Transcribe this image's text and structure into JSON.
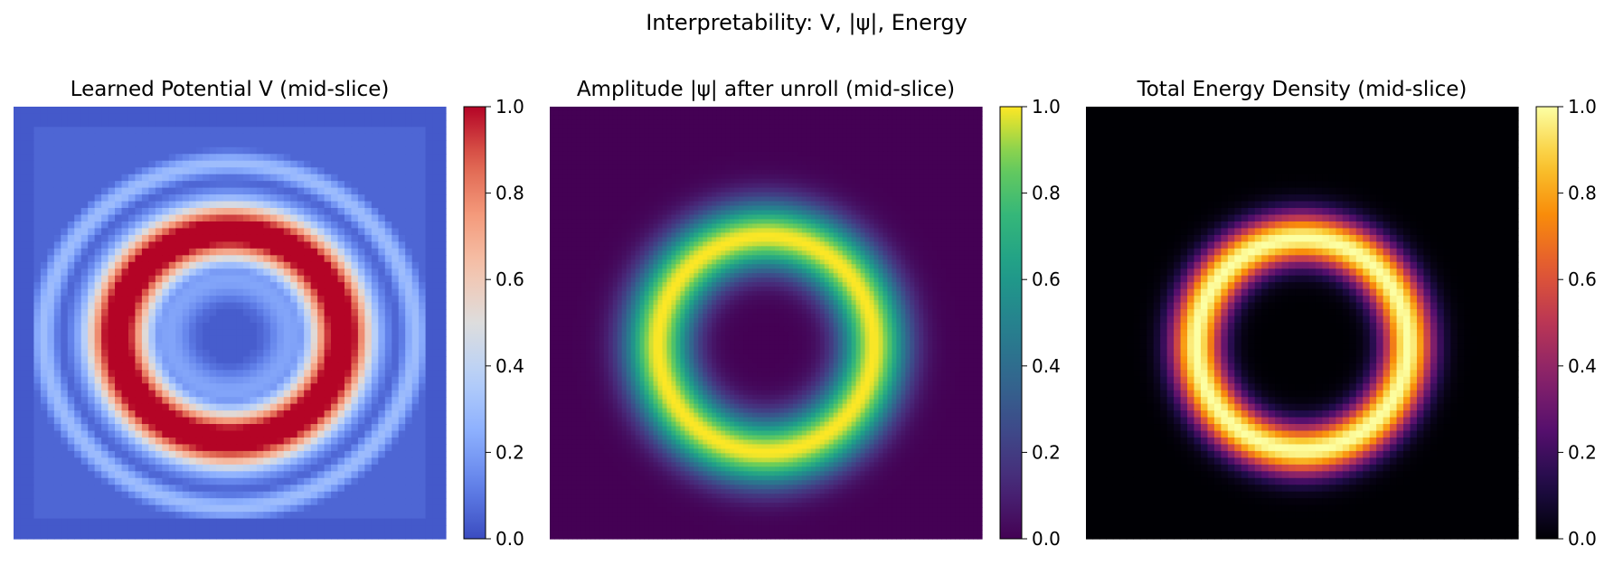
{
  "figure": {
    "suptitle": "Interpretability: V, |ψ|, Energy"
  },
  "chart_data": [
    {
      "type": "heatmap",
      "title": "Learned Potential V (mid-slice)",
      "colormap": "coolwarm",
      "grid": false,
      "axes_visible": false,
      "zlim": [
        0,
        1
      ],
      "colorbar": {
        "placement": "right",
        "ticks": [
          0,
          0.2,
          0.4,
          0.6,
          0.8,
          1.0
        ],
        "tick_labels": [
          "0.0",
          "0.2",
          "0.4",
          "0.6",
          "0.8",
          "1.0"
        ]
      },
      "field": {
        "grid_size": 64,
        "background": 0.06,
        "ring_center": [
          0.0,
          0.03
        ],
        "ring_radius": 0.26,
        "ring_width": 0.085,
        "ring_peak": 1.0,
        "inner_halo_radius": 0.14,
        "inner_halo_value": 0.22,
        "hole_radius": 0.065,
        "hole_value": 0.04,
        "outer_halo_radius": 0.43,
        "outer_halo_value": 0.3
      }
    },
    {
      "type": "heatmap",
      "title": "Amplitude |ψ| after unroll (mid-slice)",
      "colormap": "viridis",
      "grid": false,
      "axes_visible": false,
      "zlim": [
        0,
        1
      ],
      "colorbar": {
        "placement": "right",
        "ticks": [
          0,
          0.2,
          0.4,
          0.6,
          0.8,
          1.0
        ],
        "tick_labels": [
          "0.0",
          "0.2",
          "0.4",
          "0.6",
          "0.8",
          "1.0"
        ]
      },
      "field": {
        "grid_size": 96,
        "background": 0.0,
        "ring_center": [
          0.0,
          0.05
        ],
        "ring_radius": 0.25,
        "ring_width": 0.1,
        "ring_peak": 1.0
      }
    },
    {
      "type": "heatmap",
      "title": "Total Energy Density (mid-slice)",
      "colormap": "inferno",
      "grid": false,
      "axes_visible": false,
      "zlim": [
        0,
        1
      ],
      "colorbar": {
        "placement": "right",
        "ticks": [
          0,
          0.2,
          0.4,
          0.6,
          0.8,
          1.0
        ],
        "tick_labels": [
          "0.0",
          "0.2",
          "0.4",
          "0.6",
          "0.8",
          "1.0"
        ]
      },
      "field": {
        "grid_size": 64,
        "background": 0.0,
        "ring_center": [
          0.0,
          0.05
        ],
        "ring_radius": 0.245,
        "ring_width": 0.075,
        "ring_peak": 1.0
      }
    }
  ]
}
